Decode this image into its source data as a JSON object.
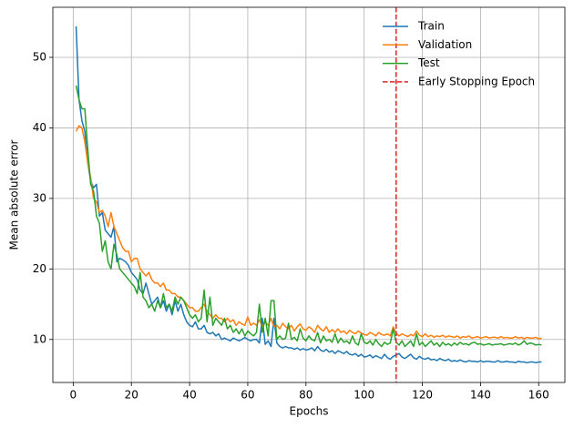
{
  "chart_data": {
    "type": "line",
    "xlabel": "Epochs",
    "ylabel": "Mean absolute error",
    "x": [
      1,
      2,
      3,
      4,
      5,
      6,
      7,
      8,
      9,
      10,
      11,
      12,
      13,
      14,
      15,
      16,
      17,
      18,
      19,
      20,
      21,
      22,
      23,
      24,
      25,
      26,
      27,
      28,
      29,
      30,
      31,
      32,
      33,
      34,
      35,
      36,
      37,
      38,
      39,
      40,
      41,
      42,
      43,
      44,
      45,
      46,
      47,
      48,
      49,
      50,
      51,
      52,
      53,
      54,
      55,
      56,
      57,
      58,
      59,
      60,
      61,
      62,
      63,
      64,
      65,
      66,
      67,
      68,
      69,
      70,
      71,
      72,
      73,
      74,
      75,
      76,
      77,
      78,
      79,
      80,
      81,
      82,
      83,
      84,
      85,
      86,
      87,
      88,
      89,
      90,
      91,
      92,
      93,
      94,
      95,
      96,
      97,
      98,
      99,
      100,
      101,
      102,
      103,
      104,
      105,
      106,
      107,
      108,
      109,
      110,
      111,
      112,
      113,
      114,
      115,
      116,
      117,
      118,
      119,
      120,
      121,
      122,
      123,
      124,
      125,
      126,
      127,
      128,
      129,
      130,
      131,
      132,
      133,
      134,
      135,
      136,
      137,
      138,
      139,
      140,
      141,
      142,
      143,
      144,
      145,
      146,
      147,
      148,
      149,
      150,
      151,
      152,
      153,
      154,
      155,
      156,
      157,
      158,
      159,
      160,
      161
    ],
    "series": [
      {
        "name": "Train",
        "color": "#1f77b4",
        "values": [
          54.4,
          44.0,
          41.0,
          39.5,
          35.0,
          32.5,
          31.5,
          32.0,
          27.5,
          28.0,
          25.5,
          25.0,
          24.5,
          26.0,
          21.0,
          21.5,
          21.3,
          21.0,
          20.5,
          19.5,
          19.0,
          18.5,
          17.0,
          16.5,
          18.0,
          16.5,
          15.0,
          15.5,
          16.0,
          14.5,
          15.5,
          14.0,
          15.0,
          13.5,
          15.5,
          14.0,
          15.0,
          13.5,
          12.5,
          12.0,
          11.8,
          12.5,
          11.5,
          11.5,
          12.0,
          11.0,
          10.8,
          11.0,
          10.5,
          10.8,
          10.0,
          10.2,
          10.0,
          9.8,
          10.2,
          10.0,
          9.8,
          10.0,
          10.3,
          10.0,
          9.8,
          10.0,
          10.0,
          9.5,
          13.0,
          9.3,
          9.8,
          9.0,
          13.0,
          9.5,
          9.0,
          8.8,
          9.0,
          8.8,
          8.8,
          8.6,
          8.8,
          8.5,
          8.7,
          8.5,
          8.6,
          8.8,
          8.4,
          9.0,
          8.5,
          8.3,
          8.6,
          8.2,
          8.4,
          8.0,
          8.4,
          8.2,
          8.0,
          8.3,
          7.9,
          7.8,
          8.0,
          7.6,
          7.9,
          7.5,
          7.6,
          7.8,
          7.4,
          7.7,
          7.5,
          7.3,
          7.9,
          7.4,
          7.2,
          7.6,
          7.8,
          8.0,
          7.5,
          7.3,
          7.6,
          7.9,
          7.4,
          7.2,
          7.6,
          7.3,
          7.2,
          7.4,
          7.1,
          7.2,
          7.0,
          7.3,
          7.1,
          7.0,
          7.2,
          6.9,
          7.0,
          6.9,
          7.1,
          6.9,
          6.8,
          7.0,
          6.9,
          6.9,
          6.8,
          7.0,
          6.8,
          6.9,
          6.9,
          6.8,
          6.8,
          7.0,
          6.8,
          6.8,
          6.9,
          6.8,
          6.8,
          6.7,
          6.9,
          6.8,
          6.8,
          6.7,
          6.8,
          6.8,
          6.7,
          6.8,
          6.8
        ]
      },
      {
        "name": "Validation",
        "color": "#ff7f0e",
        "values": [
          39.5,
          40.3,
          40.0,
          38.0,
          35.0,
          33.0,
          30.0,
          29.5,
          28.0,
          28.3,
          27.5,
          26.0,
          28.0,
          26.0,
          25.0,
          24.0,
          23.0,
          22.5,
          22.5,
          21.0,
          21.5,
          21.5,
          20.0,
          19.5,
          19.0,
          19.5,
          18.5,
          18.0,
          18.0,
          17.5,
          18.0,
          17.0,
          17.0,
          16.5,
          16.5,
          16.0,
          16.0,
          15.5,
          15.0,
          14.5,
          14.5,
          14.0,
          14.0,
          14.5,
          15.0,
          14.0,
          13.5,
          13.0,
          13.5,
          13.0,
          13.0,
          12.5,
          13.0,
          12.5,
          12.8,
          12.0,
          12.5,
          12.2,
          12.0,
          13.2,
          12.0,
          12.3,
          12.0,
          12.8,
          11.8,
          12.5,
          12.0,
          13.0,
          11.8,
          12.0,
          11.5,
          12.3,
          11.8,
          11.5,
          12.0,
          11.2,
          11.8,
          12.2,
          11.5,
          11.3,
          11.8,
          11.5,
          11.0,
          12.0,
          11.5,
          11.2,
          11.8,
          11.0,
          11.4,
          11.0,
          11.5,
          11.0,
          11.2,
          10.8,
          11.3,
          11.0,
          10.8,
          11.2,
          10.9,
          10.7,
          10.6,
          11.0,
          10.8,
          10.5,
          11.0,
          10.7,
          10.6,
          10.8,
          10.5,
          11.8,
          10.9,
          10.5,
          10.8,
          10.6,
          10.4,
          10.7,
          10.5,
          11.2,
          10.6,
          10.4,
          10.8,
          10.4,
          10.6,
          10.3,
          10.5,
          10.4,
          10.6,
          10.3,
          10.5,
          10.4,
          10.3,
          10.5,
          10.2,
          10.4,
          10.3,
          10.5,
          10.2,
          10.3,
          10.4,
          10.2,
          10.3,
          10.4,
          10.2,
          10.3,
          10.3,
          10.2,
          10.4,
          10.2,
          10.3,
          10.2,
          10.2,
          10.4,
          10.2,
          10.3,
          10.1,
          10.3,
          10.2,
          10.2,
          10.3,
          10.1,
          10.2
        ]
      },
      {
        "name": "Test",
        "color": "#2ca02c",
        "values": [
          46.0,
          44.0,
          42.7,
          42.7,
          37.0,
          32.0,
          31.0,
          27.5,
          26.5,
          22.5,
          24.0,
          21.0,
          20.0,
          23.5,
          22.0,
          20.0,
          19.5,
          19.0,
          18.5,
          18.0,
          17.5,
          16.5,
          19.5,
          16.0,
          15.5,
          14.5,
          15.0,
          14.0,
          15.5,
          14.5,
          16.5,
          14.5,
          15.0,
          14.0,
          16.0,
          15.0,
          16.0,
          15.5,
          14.5,
          13.5,
          13.0,
          13.5,
          12.5,
          13.0,
          17.0,
          12.5,
          16.0,
          12.0,
          13.0,
          12.5,
          12.0,
          13.0,
          11.5,
          12.0,
          11.0,
          11.5,
          10.8,
          11.5,
          10.5,
          11.2,
          10.8,
          10.5,
          11.0,
          15.0,
          11.0,
          13.0,
          10.5,
          15.5,
          15.5,
          10.0,
          10.5,
          10.0,
          10.2,
          12.3,
          10.0,
          10.3,
          9.8,
          11.5,
          10.2,
          9.8,
          10.5,
          10.0,
          9.8,
          11.0,
          9.5,
          10.5,
          9.8,
          10.0,
          9.6,
          10.8,
          9.5,
          10.2,
          9.6,
          9.8,
          9.4,
          10.5,
          9.5,
          9.2,
          10.8,
          9.6,
          9.4,
          9.8,
          9.2,
          10.0,
          9.4,
          9.0,
          9.6,
          9.3,
          9.5,
          11.5,
          9.6,
          9.2,
          9.8,
          9.0,
          9.4,
          9.8,
          9.0,
          10.8,
          9.2,
          9.6,
          9.0,
          9.4,
          9.8,
          9.2,
          9.5,
          9.0,
          9.6,
          9.2,
          9.4,
          9.1,
          9.5,
          9.2,
          9.6,
          9.3,
          9.4,
          9.2,
          9.5,
          9.6,
          9.3,
          9.4,
          9.2,
          9.3,
          9.4,
          9.2,
          9.3,
          9.3,
          9.4,
          9.2,
          9.3,
          9.4,
          9.3,
          9.5,
          9.2,
          9.4,
          9.8,
          9.3,
          9.5,
          9.4,
          9.2,
          9.3,
          9.2
        ]
      }
    ],
    "vline": {
      "name": "Early Stopping Epoch",
      "x": 111,
      "color": "#d62728",
      "style": "dashed"
    },
    "xlim": [
      -7,
      169
    ],
    "ylim": [
      3.9,
      57.1
    ],
    "xticks": [
      0,
      20,
      40,
      60,
      80,
      100,
      120,
      140,
      160
    ],
    "yticks": [
      10,
      20,
      30,
      40,
      50
    ],
    "grid": true,
    "legend": "upper right"
  }
}
